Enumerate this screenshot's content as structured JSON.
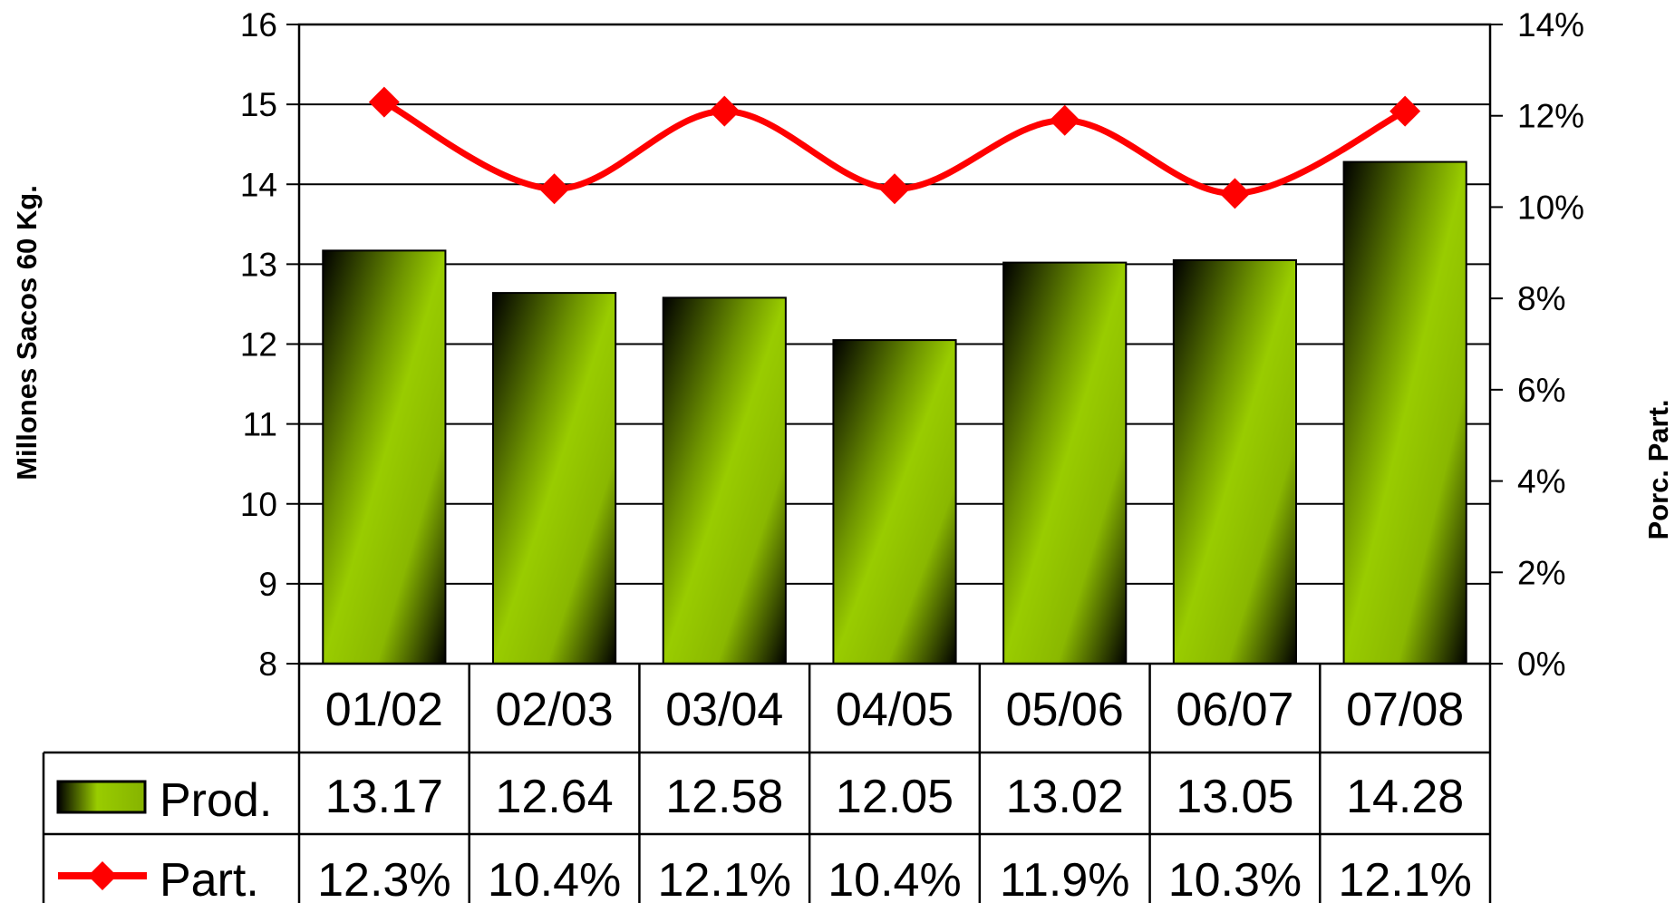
{
  "chart_data": {
    "type": "bar",
    "categories": [
      "01/02",
      "02/03",
      "03/04",
      "04/05",
      "05/06",
      "06/07",
      "07/08"
    ],
    "series": [
      {
        "name": "Prod.",
        "type": "bar",
        "axis": "left",
        "values": [
          13.17,
          12.64,
          12.58,
          12.05,
          13.02,
          13.05,
          14.28
        ],
        "labels": [
          "13.17",
          "12.64",
          "12.58",
          "12.05",
          "13.02",
          "13.05",
          "14.28"
        ],
        "color": "#99cc00"
      },
      {
        "name": "Part.",
        "type": "line",
        "axis": "right",
        "values": [
          12.3,
          10.4,
          12.1,
          10.4,
          11.9,
          10.3,
          12.1
        ],
        "labels": [
          "12.3%",
          "10.4%",
          "12.1%",
          "10.4%",
          "11.9%",
          "10.3%",
          "12.1%"
        ],
        "color": "#ff0000",
        "marker": "diamond"
      }
    ],
    "ylabel": "Millones Sacos 60 Kg.",
    "y2label": "Porc. Part.",
    "ylim": [
      8,
      16
    ],
    "y2lim": [
      0,
      14
    ],
    "yticks": [
      "8",
      "9",
      "10",
      "11",
      "12",
      "13",
      "14",
      "15",
      "16"
    ],
    "y2ticks": [
      "0%",
      "2%",
      "4%",
      "6%",
      "8%",
      "10%",
      "12%",
      "14%"
    ],
    "grid": true,
    "legend": "data-table"
  }
}
